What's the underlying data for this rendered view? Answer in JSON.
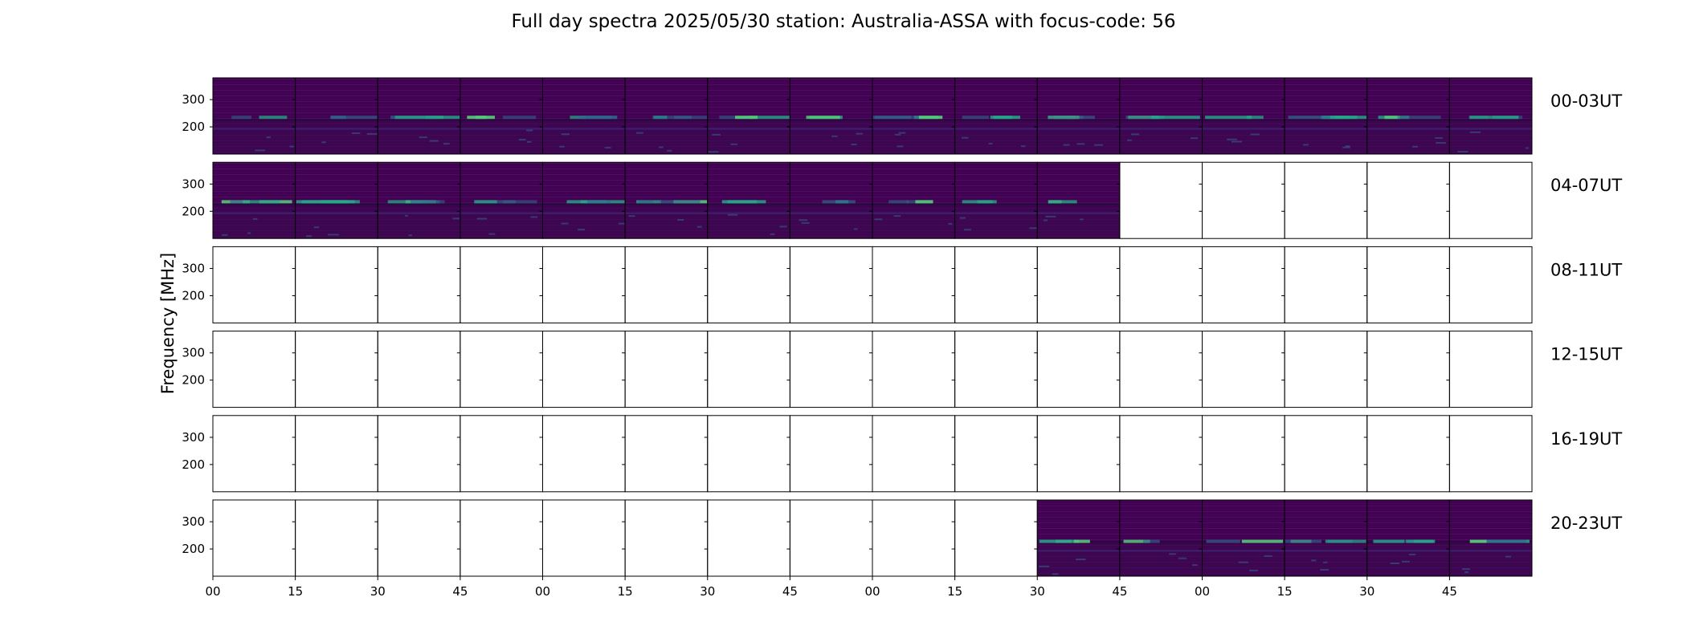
{
  "chart_data": {
    "type": "heatmap",
    "title": "Full day spectra 2025/05/30 station: Australia-ASSA with focus-code: 56",
    "ylabel": "Frequency [MHz]",
    "xlabel": "",
    "y_unit": "MHz",
    "ylim": [
      100,
      380
    ],
    "yticks": [
      200,
      300
    ],
    "xticks": [
      "00",
      "15",
      "30",
      "45",
      "00",
      "15",
      "30",
      "45",
      "00",
      "15",
      "30",
      "45",
      "00",
      "15",
      "30",
      "45"
    ],
    "panel_minutes": 15,
    "grid": false,
    "colormap": "viridis",
    "rows": [
      {
        "label": "00-03UT",
        "panels_with_data": [
          1,
          1,
          1,
          1,
          1,
          1,
          1,
          1,
          1,
          1,
          1,
          1,
          1,
          1,
          1,
          1
        ]
      },
      {
        "label": "04-07UT",
        "panels_with_data": [
          1,
          1,
          1,
          1,
          1,
          1,
          1,
          1,
          1,
          1,
          1,
          0,
          0,
          0,
          0,
          0
        ]
      },
      {
        "label": "08-11UT",
        "panels_with_data": [
          0,
          0,
          0,
          0,
          0,
          0,
          0,
          0,
          0,
          0,
          0,
          0,
          0,
          0,
          0,
          0
        ]
      },
      {
        "label": "12-15UT",
        "panels_with_data": [
          0,
          0,
          0,
          0,
          0,
          0,
          0,
          0,
          0,
          0,
          0,
          0,
          0,
          0,
          0,
          0
        ]
      },
      {
        "label": "16-19UT",
        "panels_with_data": [
          0,
          0,
          0,
          0,
          0,
          0,
          0,
          0,
          0,
          0,
          0,
          0,
          0,
          0,
          0,
          0
        ]
      },
      {
        "label": "20-23UT",
        "panels_with_data": [
          0,
          0,
          0,
          0,
          0,
          0,
          0,
          0,
          0,
          0,
          1,
          1,
          1,
          1,
          1,
          1
        ]
      }
    ],
    "colors": {
      "background": "#440154",
      "band": "#482475",
      "dark_line": "#2a0a3f",
      "weak_signal": "#31688e",
      "medium_signal": "#26a88a",
      "strong_signal": "#57c87a"
    }
  }
}
